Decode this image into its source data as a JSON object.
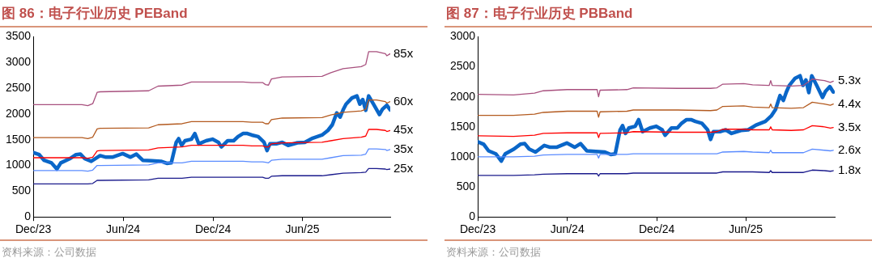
{
  "chart_data": [
    {
      "type": "line",
      "title": "图 86：电子行业历史 PEBand",
      "annotations": [
        "资料来源：公司数据"
      ],
      "legend": false,
      "grid": false,
      "xlim": [
        "2023-12-01",
        "2025-11-27"
      ],
      "xticks": [
        {
          "value": "2023-12-01",
          "label": "Dec/23"
        },
        {
          "value": "2024-06-01",
          "label": "Jun/24"
        },
        {
          "value": "2024-12-01",
          "label": "Dec/24"
        },
        {
          "value": "2025-06-01",
          "label": "Jun/25"
        }
      ],
      "ylim": [
        0,
        3500
      ],
      "yticks": [
        0,
        500,
        1000,
        1500,
        2000,
        2500,
        3000,
        3500
      ],
      "x": [
        "2023-12-01",
        "2024-03-09",
        "2024-03-21",
        "2024-03-31",
        "2024-04-09",
        "2024-04-15",
        "2024-07-23",
        "2024-08-11",
        "2024-09-29",
        "2024-10-18",
        "2025-01-31",
        "2025-02-18",
        "2025-03-12",
        "2025-03-18",
        "2025-03-24",
        "2025-03-30",
        "2025-04-21",
        "2025-07-11",
        "2025-07-29",
        "2025-08-23",
        "2025-09-29",
        "2025-10-08",
        "2025-10-14",
        "2025-10-30",
        "2025-11-17",
        "2025-11-20",
        "2025-11-27"
      ],
      "series": [
        {
          "name": "85x",
          "color": "#a8507e",
          "values": [
            2180,
            2180,
            2160,
            2200,
            2420,
            2430,
            2450,
            2540,
            2560,
            2620,
            2620,
            2610,
            2610,
            2570,
            2560,
            2680,
            2720,
            2730,
            2800,
            2880,
            2920,
            2960,
            3210,
            3210,
            3170,
            3130,
            3170
          ]
        },
        {
          "name": "60x",
          "color": "#b35a1f",
          "values": [
            1540,
            1540,
            1520,
            1550,
            1710,
            1720,
            1730,
            1790,
            1810,
            1850,
            1850,
            1840,
            1840,
            1810,
            1810,
            1890,
            1920,
            1930,
            1980,
            2030,
            2060,
            2090,
            2270,
            2270,
            2240,
            2210,
            2240
          ]
        },
        {
          "name": "45x",
          "color": "#ff0000",
          "values": [
            1150,
            1150,
            1140,
            1160,
            1280,
            1290,
            1300,
            1340,
            1360,
            1390,
            1390,
            1380,
            1380,
            1360,
            1360,
            1420,
            1440,
            1450,
            1480,
            1520,
            1550,
            1570,
            1700,
            1700,
            1680,
            1660,
            1680
          ]
        },
        {
          "name": "35x",
          "color": "#5b8cff",
          "values": [
            900,
            900,
            890,
            910,
            1000,
            1000,
            1010,
            1050,
            1050,
            1080,
            1080,
            1070,
            1070,
            1060,
            1050,
            1100,
            1120,
            1120,
            1150,
            1190,
            1200,
            1220,
            1320,
            1320,
            1310,
            1290,
            1310
          ]
        },
        {
          "name": "25x",
          "color": "#1a1a8c",
          "values": [
            640,
            640,
            640,
            650,
            710,
            710,
            720,
            750,
            750,
            770,
            770,
            770,
            770,
            750,
            750,
            790,
            800,
            800,
            820,
            850,
            860,
            870,
            940,
            940,
            930,
            920,
            930
          ]
        },
        {
          "color": "#0a66c8",
          "x": [
            "2023-12-01",
            "2023-12-13",
            "2023-12-23",
            "2024-01-07",
            "2024-01-18",
            "2024-01-26",
            "2024-02-13",
            "2024-02-26",
            "2024-03-06",
            "2024-03-15",
            "2024-03-28",
            "2024-04-15",
            "2024-04-27",
            "2024-05-10",
            "2024-05-31",
            "2024-06-16",
            "2024-06-28",
            "2024-07-11",
            "2024-07-29",
            "2024-08-17",
            "2024-08-29",
            "2024-09-07",
            "2024-09-17",
            "2024-09-22",
            "2024-09-28",
            "2024-10-05",
            "2024-10-18",
            "2024-10-25",
            "2024-11-02",
            "2024-11-17",
            "2024-11-30",
            "2024-12-12",
            "2024-12-18",
            "2024-12-31",
            "2025-01-12",
            "2025-01-21",
            "2025-01-31",
            "2025-02-09",
            "2025-02-18",
            "2025-03-03",
            "2025-03-15",
            "2025-03-21",
            "2025-03-27",
            "2025-04-09",
            "2025-04-21",
            "2025-05-03",
            "2025-05-22",
            "2025-06-06",
            "2025-06-22",
            "2025-07-11",
            "2025-07-23",
            "2025-08-01",
            "2025-08-10",
            "2025-08-17",
            "2025-08-23",
            "2025-08-29",
            "2025-09-10",
            "2025-09-20",
            "2025-09-26",
            "2025-10-02",
            "2025-10-08",
            "2025-10-14",
            "2025-10-24",
            "2025-11-05",
            "2025-11-11",
            "2025-11-20",
            "2025-11-27"
          ],
          "values": [
            1250,
            1210,
            1100,
            1050,
            930,
            1050,
            1130,
            1210,
            1220,
            1130,
            1080,
            1190,
            1160,
            1160,
            1230,
            1160,
            1220,
            1100,
            1090,
            1080,
            1040,
            1050,
            1450,
            1520,
            1390,
            1480,
            1510,
            1620,
            1420,
            1480,
            1510,
            1450,
            1360,
            1480,
            1480,
            1560,
            1620,
            1620,
            1590,
            1560,
            1450,
            1290,
            1420,
            1420,
            1450,
            1390,
            1440,
            1450,
            1530,
            1590,
            1680,
            1790,
            2020,
            1940,
            2080,
            2190,
            2310,
            2350,
            2190,
            2280,
            2070,
            2350,
            2190,
            1990,
            2090,
            2170,
            2080
          ]
        }
      ]
    },
    {
      "type": "line",
      "title": "图 87：电子行业历史 PBBand",
      "annotations": [
        "资料来源：公司数据"
      ],
      "legend": false,
      "grid": false,
      "xlim": [
        "2023-12-01",
        "2025-11-30"
      ],
      "xticks": [
        {
          "value": "2023-12-01",
          "label": "Dec/23"
        },
        {
          "value": "2024-06-01",
          "label": "Jun/24"
        },
        {
          "value": "2024-12-01",
          "label": "Dec/24"
        },
        {
          "value": "2025-06-01",
          "label": "Jun/25"
        }
      ],
      "ylim": [
        0,
        3000
      ],
      "yticks": [
        0,
        500,
        1000,
        1500,
        2000,
        2500,
        3000
      ],
      "x": [
        "2023-12-01",
        "2024-02-12",
        "2024-03-26",
        "2024-04-13",
        "2024-06-01",
        "2024-08-01",
        "2024-08-04",
        "2024-08-07",
        "2024-10-01",
        "2024-10-14",
        "2025-01-13",
        "2025-03-21",
        "2025-04-03",
        "2025-04-15",
        "2025-05-28",
        "2025-06-15",
        "2025-07-19",
        "2025-07-22",
        "2025-07-25",
        "2025-09-02",
        "2025-09-27",
        "2025-10-15",
        "2025-11-09",
        "2025-11-21",
        "2025-11-27"
      ],
      "series": [
        {
          "name": "5.3x",
          "color": "#a8507e",
          "values": [
            2040,
            2030,
            2060,
            2100,
            2120,
            2120,
            2000,
            2110,
            2120,
            2150,
            2140,
            2140,
            2150,
            2210,
            2220,
            2200,
            2190,
            2270,
            2190,
            2180,
            2190,
            2295,
            2270,
            2240,
            2260
          ]
        },
        {
          "name": "4.4x",
          "color": "#b35a1f",
          "values": [
            1690,
            1690,
            1710,
            1740,
            1760,
            1760,
            1660,
            1750,
            1760,
            1780,
            1780,
            1770,
            1780,
            1840,
            1850,
            1830,
            1820,
            1880,
            1820,
            1810,
            1820,
            1910,
            1880,
            1860,
            1880
          ]
        },
        {
          "name": "3.5x",
          "color": "#ff0000",
          "values": [
            1350,
            1340,
            1360,
            1390,
            1400,
            1400,
            1320,
            1390,
            1400,
            1420,
            1410,
            1410,
            1420,
            1460,
            1460,
            1450,
            1450,
            1500,
            1450,
            1440,
            1450,
            1520,
            1500,
            1480,
            1490
          ]
        },
        {
          "name": "2.6x",
          "color": "#5b8cff",
          "values": [
            1000,
            1000,
            1010,
            1030,
            1040,
            1040,
            980,
            1040,
            1040,
            1050,
            1050,
            1050,
            1050,
            1080,
            1090,
            1080,
            1070,
            1110,
            1070,
            1070,
            1070,
            1130,
            1110,
            1100,
            1110
          ]
        },
        {
          "name": "1.8x",
          "color": "#1a1a8c",
          "values": [
            690,
            690,
            700,
            710,
            720,
            720,
            680,
            720,
            720,
            730,
            730,
            730,
            730,
            750,
            750,
            750,
            740,
            770,
            740,
            740,
            740,
            780,
            770,
            760,
            770
          ]
        },
        {
          "color": "#0a66c8",
          "x": [
            "2023-12-01",
            "2023-12-13",
            "2023-12-23",
            "2024-01-07",
            "2024-01-18",
            "2024-01-26",
            "2024-02-13",
            "2024-02-26",
            "2024-03-06",
            "2024-03-15",
            "2024-03-28",
            "2024-04-15",
            "2024-04-27",
            "2024-05-10",
            "2024-05-31",
            "2024-06-16",
            "2024-06-28",
            "2024-07-11",
            "2024-07-29",
            "2024-08-17",
            "2024-08-29",
            "2024-09-07",
            "2024-09-17",
            "2024-09-22",
            "2024-09-28",
            "2024-10-05",
            "2024-10-18",
            "2024-10-25",
            "2024-11-02",
            "2024-11-17",
            "2024-11-30",
            "2024-12-12",
            "2024-12-18",
            "2024-12-31",
            "2025-01-12",
            "2025-01-21",
            "2025-01-31",
            "2025-02-09",
            "2025-02-18",
            "2025-03-03",
            "2025-03-15",
            "2025-03-21",
            "2025-03-27",
            "2025-04-09",
            "2025-04-21",
            "2025-05-03",
            "2025-05-22",
            "2025-06-06",
            "2025-06-22",
            "2025-07-11",
            "2025-07-23",
            "2025-08-01",
            "2025-08-10",
            "2025-08-17",
            "2025-08-23",
            "2025-08-29",
            "2025-09-10",
            "2025-09-20",
            "2025-09-26",
            "2025-10-02",
            "2025-10-08",
            "2025-10-14",
            "2025-10-24",
            "2025-11-05",
            "2025-11-11",
            "2025-11-20",
            "2025-11-27"
          ],
          "values": [
            1250,
            1210,
            1100,
            1050,
            930,
            1050,
            1130,
            1210,
            1220,
            1130,
            1080,
            1190,
            1160,
            1160,
            1230,
            1160,
            1220,
            1100,
            1090,
            1080,
            1040,
            1050,
            1450,
            1520,
            1390,
            1480,
            1510,
            1620,
            1420,
            1480,
            1510,
            1450,
            1360,
            1480,
            1480,
            1560,
            1620,
            1620,
            1590,
            1560,
            1450,
            1290,
            1420,
            1420,
            1450,
            1390,
            1440,
            1450,
            1530,
            1590,
            1680,
            1790,
            2020,
            1940,
            2080,
            2190,
            2310,
            2350,
            2190,
            2280,
            2070,
            2350,
            2190,
            1990,
            2090,
            2170,
            2080
          ]
        }
      ]
    }
  ]
}
